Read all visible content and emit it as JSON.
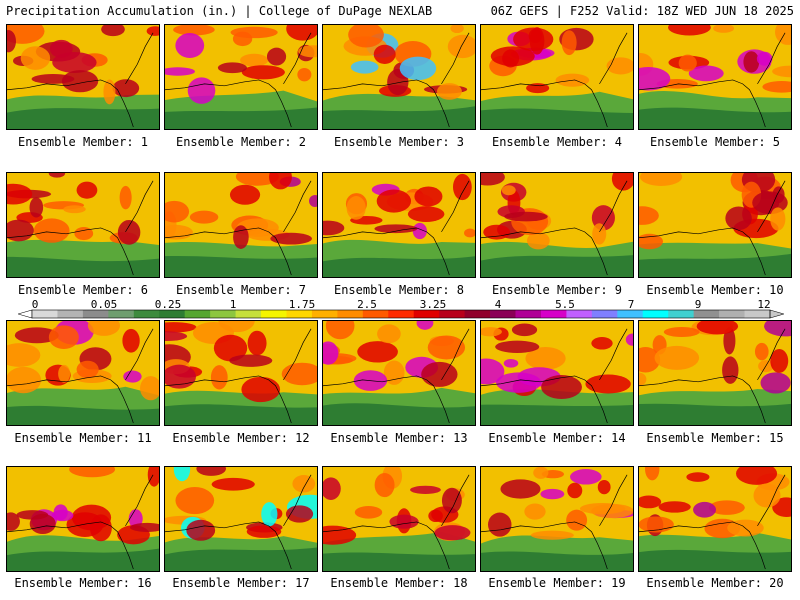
{
  "header": {
    "title_left": "Precipitation Accumulation (in.) | College of DuPage NEXLAB",
    "title_right": "06Z GEFS | F252 Valid: 18Z WED JUN 18 2025"
  },
  "colorbar": {
    "labels": [
      "0",
      "0.05",
      "0.25",
      "1",
      "1.75",
      "2.5",
      "3.25",
      "4",
      "5.5",
      "7",
      "9",
      "12"
    ],
    "colors": [
      "#d9d9d9",
      "#b3b3b3",
      "#8c8c8c",
      "#6e9e6e",
      "#3d8b3d",
      "#2e7d32",
      "#55a630",
      "#8dc63f",
      "#c6e03a",
      "#f5f500",
      "#ffd700",
      "#ffb000",
      "#ff8c00",
      "#ff5a00",
      "#ff2a00",
      "#e00000",
      "#b8001a",
      "#90002a",
      "#8b0057",
      "#b00096",
      "#d600c8",
      "#c060ff",
      "#7f7fff",
      "#40c0ff",
      "#00ffff",
      "#40d0d0",
      "#909090",
      "#b0b0b0",
      "#c8c8c8"
    ]
  },
  "panels": [
    {
      "label": "Ensemble Member: 1",
      "accent": "#c8002a"
    },
    {
      "label": "Ensemble Member: 2",
      "accent": "#d600c8"
    },
    {
      "label": "Ensemble Member: 3",
      "accent": "#40c0ff"
    },
    {
      "label": "Ensemble Member: 4",
      "accent": "#d600c8"
    },
    {
      "label": "Ensemble Member: 5",
      "accent": "#d600c8"
    },
    {
      "label": "Ensemble Member: 6",
      "accent": "#b8001a"
    },
    {
      "label": "Ensemble Member: 7",
      "accent": "#b00096"
    },
    {
      "label": "Ensemble Member: 8",
      "accent": "#d600c8"
    },
    {
      "label": "Ensemble Member: 9",
      "accent": "#c8002a"
    },
    {
      "label": "Ensemble Member: 10",
      "accent": "#b8001a"
    },
    {
      "label": "Ensemble Member: 11",
      "accent": "#d600c8"
    },
    {
      "label": "Ensemble Member: 12",
      "accent": "#c8002a"
    },
    {
      "label": "Ensemble Member: 13",
      "accent": "#d600c8"
    },
    {
      "label": "Ensemble Member: 14",
      "accent": "#d600c8"
    },
    {
      "label": "Ensemble Member: 15",
      "accent": "#b00096"
    },
    {
      "label": "Ensemble Member: 16",
      "accent": "#d600c8"
    },
    {
      "label": "Ensemble Member: 17",
      "accent": "#00ffff"
    },
    {
      "label": "Ensemble Member: 18",
      "accent": "#c8002a"
    },
    {
      "label": "Ensemble Member: 19",
      "accent": "#d600c8"
    },
    {
      "label": "Ensemble Member: 20",
      "accent": "#b00096"
    }
  ]
}
